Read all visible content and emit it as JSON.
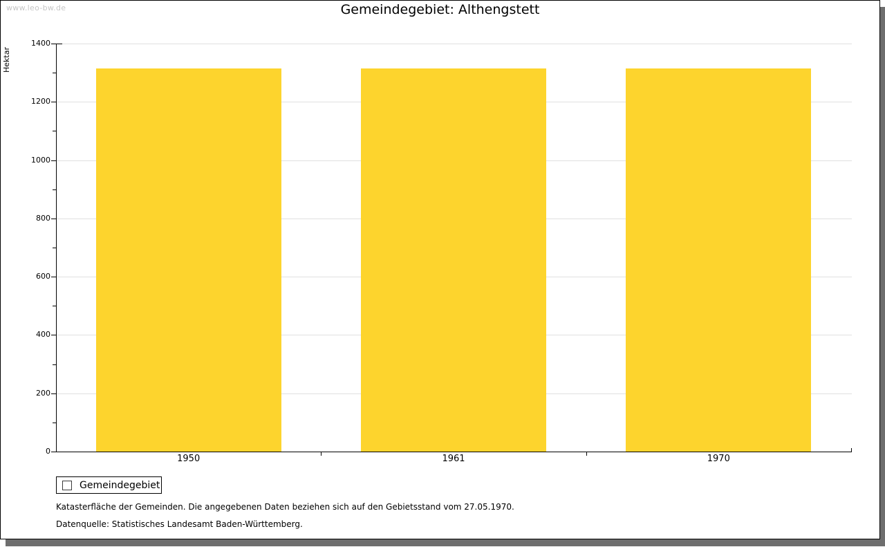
{
  "watermark": "www.leo-bw.de",
  "chart_data": {
    "type": "bar",
    "title": "Gemeindegebiet: Althengstett",
    "ylabel": "Hektar",
    "xlabel": "",
    "categories": [
      "1950",
      "1961",
      "1970"
    ],
    "series": [
      {
        "name": "Gemeindegebiet",
        "values": [
          1314,
          1314,
          1314
        ]
      }
    ],
    "ylim": [
      0,
      1400
    ],
    "ytick_major": 200,
    "ytick_minor": 100,
    "grid": "horizontal-major-lines",
    "legend_position": "bottom-left",
    "bar_width_fraction": 0.7
  },
  "legend": {
    "label": "Gemeindegebiet"
  },
  "footer": {
    "line1": "Katasterfläche der Gemeinden. Die angegebenen Daten beziehen sich auf den Gebietsstand vom 27.05.1970.",
    "line2": "Datenquelle: Statistisches Landesamt Baden-Württemberg."
  },
  "colors": {
    "bar": "#fdd42d",
    "grid": "#e0e0e0",
    "axis": "#000000",
    "text": "#000000",
    "watermark": "#c6c6c6",
    "frame_border": "#000000",
    "frame_shadow": "#6e6e6e",
    "background": "#ffffff"
  }
}
